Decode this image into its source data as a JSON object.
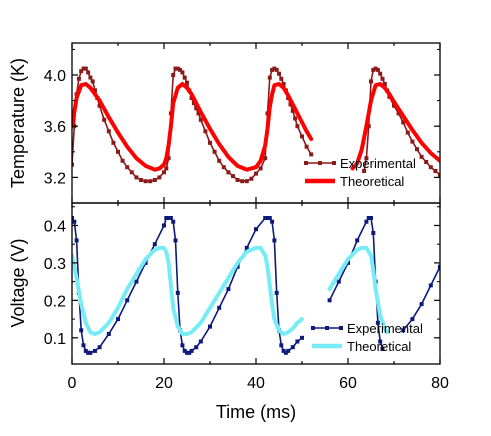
{
  "chart_data": [
    {
      "type": "line",
      "panel": "top",
      "ylabel": "Temperature (K)",
      "ylim": [
        3.0,
        4.25
      ],
      "yticks": [
        3.2,
        3.6,
        4.0
      ],
      "ytick_labels": [
        "3.2",
        "3.6",
        "4.0"
      ],
      "xlim": [
        0,
        80
      ],
      "legend_position": "bottom-right",
      "series": [
        {
          "name": "Experimental",
          "color": "#8b1a1a",
          "marker": "square",
          "x": [
            0,
            0.5,
            1,
            1.5,
            2,
            2.5,
            3,
            3.5,
            4,
            4.5,
            5,
            5.5,
            6,
            7,
            8,
            9,
            10,
            11,
            12,
            13,
            14,
            15,
            16,
            17,
            18,
            19,
            20,
            20.5,
            21,
            21.5,
            22,
            22.5,
            23,
            23.5,
            24,
            24.5,
            25,
            25.5,
            26,
            26.5,
            27,
            27.5,
            28,
            29,
            30,
            31,
            32,
            33,
            34,
            35,
            36,
            37,
            38,
            39,
            40,
            41,
            42,
            42.5,
            43,
            43.5,
            44,
            44.5,
            45,
            45.5,
            46,
            46.5,
            47,
            47.5,
            48,
            48.5,
            49,
            50,
            51,
            52
          ],
          "y": [
            3.3,
            3.6,
            3.85,
            3.97,
            4.03,
            4.05,
            4.05,
            4.02,
            3.98,
            3.95,
            3.88,
            3.82,
            3.76,
            3.65,
            3.56,
            3.47,
            3.4,
            3.33,
            3.28,
            3.24,
            3.2,
            3.18,
            3.17,
            3.17,
            3.18,
            3.2,
            3.24,
            3.27,
            3.35,
            3.7,
            4.0,
            4.05,
            4.05,
            4.04,
            4.02,
            3.98,
            3.94,
            3.88,
            3.82,
            3.78,
            3.74,
            3.7,
            3.65,
            3.56,
            3.47,
            3.4,
            3.33,
            3.28,
            3.24,
            3.21,
            3.18,
            3.17,
            3.17,
            3.19,
            3.23,
            3.27,
            3.35,
            3.7,
            3.98,
            4.04,
            4.05,
            4.04,
            4.01,
            3.97,
            3.93,
            3.88,
            3.82,
            3.77,
            3.72,
            3.66,
            3.6,
            3.52,
            3.44,
            3.38
          ]
        },
        {
          "name": "Experimental",
          "color": "#8b1a1a",
          "marker": "square",
          "x": [
            63.5,
            64,
            64.5,
            65,
            65.5,
            66,
            66.5,
            67,
            67.5,
            68,
            68.5,
            69,
            70,
            71,
            72,
            73,
            74,
            75,
            76,
            77,
            78,
            79,
            80
          ],
          "y": [
            3.25,
            3.35,
            3.6,
            3.95,
            4.04,
            4.05,
            4.04,
            4.01,
            3.97,
            3.93,
            3.88,
            3.83,
            3.76,
            3.7,
            3.63,
            3.55,
            3.48,
            3.42,
            3.36,
            3.32,
            3.28,
            3.25,
            3.22
          ]
        },
        {
          "name": "Theoretical",
          "color": "#ff0000",
          "x": [
            0,
            1,
            2,
            3,
            4,
            5,
            6,
            8,
            10,
            12,
            14,
            16,
            18,
            19,
            20,
            20.5,
            21,
            21.5,
            22,
            23,
            24,
            25,
            26,
            27,
            28,
            30,
            32,
            34,
            36,
            38,
            40,
            41,
            42,
            42.5,
            43,
            43.5,
            44,
            45,
            46,
            47,
            48,
            49,
            50,
            51,
            52
          ],
          "y": [
            3.6,
            3.82,
            3.92,
            3.93,
            3.9,
            3.85,
            3.8,
            3.67,
            3.55,
            3.44,
            3.35,
            3.29,
            3.26,
            3.27,
            3.3,
            3.35,
            3.45,
            3.6,
            3.78,
            3.9,
            3.93,
            3.9,
            3.85,
            3.78,
            3.71,
            3.58,
            3.46,
            3.36,
            3.29,
            3.26,
            3.28,
            3.33,
            3.45,
            3.58,
            3.75,
            3.85,
            3.92,
            3.93,
            3.9,
            3.84,
            3.77,
            3.7,
            3.63,
            3.56,
            3.5
          ]
        },
        {
          "name": "Theoretical",
          "color": "#ff0000",
          "x": [
            61,
            62,
            63,
            64,
            65,
            66,
            67,
            68,
            69,
            70,
            72,
            74,
            76,
            78,
            80
          ],
          "y": [
            3.27,
            3.31,
            3.42,
            3.6,
            3.8,
            3.92,
            3.93,
            3.9,
            3.85,
            3.79,
            3.68,
            3.57,
            3.47,
            3.39,
            3.33
          ]
        }
      ],
      "legend": [
        {
          "label": "Experimental",
          "color": "#8b1a1a",
          "marker": "square"
        },
        {
          "label": "Theoretical",
          "color": "#ff0000",
          "marker": "none"
        }
      ]
    },
    {
      "type": "line",
      "panel": "bottom",
      "xlabel": "Time (ms)",
      "ylabel": "Voltage (V)",
      "ylim": [
        0.03,
        0.46
      ],
      "yticks": [
        0.1,
        0.2,
        0.3,
        0.4
      ],
      "ytick_labels": [
        "0.1",
        "0.2",
        "0.3",
        "0.4"
      ],
      "xlim": [
        0,
        80
      ],
      "xticks": [
        0,
        20,
        40,
        60,
        80
      ],
      "xtick_labels": [
        "0",
        "20",
        "40",
        "60",
        "80"
      ],
      "legend_position": "bottom-right",
      "series": [
        {
          "name": "Experimental",
          "color": "#0d1a7a",
          "marker": "square",
          "x": [
            0,
            0.5,
            1,
            1.5,
            2,
            2.5,
            3,
            3.5,
            4,
            5,
            6,
            8,
            10,
            12,
            14,
            16,
            18,
            20,
            20.5,
            21,
            21.5,
            22,
            22.5,
            23,
            23.5,
            24,
            24.5,
            25,
            25.5,
            26,
            27,
            28,
            30,
            32,
            34,
            36,
            38,
            40,
            42,
            42.5,
            43,
            43.5,
            44,
            44.5,
            45,
            45.5,
            46,
            46.5,
            47,
            48,
            49,
            50
          ],
          "y": [
            0.42,
            0.41,
            0.36,
            0.22,
            0.12,
            0.08,
            0.065,
            0.06,
            0.06,
            0.065,
            0.075,
            0.11,
            0.15,
            0.2,
            0.25,
            0.3,
            0.35,
            0.4,
            0.42,
            0.42,
            0.42,
            0.41,
            0.36,
            0.22,
            0.12,
            0.08,
            0.065,
            0.06,
            0.06,
            0.065,
            0.075,
            0.09,
            0.13,
            0.18,
            0.23,
            0.29,
            0.34,
            0.39,
            0.42,
            0.42,
            0.42,
            0.41,
            0.36,
            0.22,
            0.12,
            0.08,
            0.065,
            0.06,
            0.065,
            0.075,
            0.09,
            0.1
          ]
        },
        {
          "name": "Experimental",
          "color": "#0d1a7a",
          "marker": "square",
          "x": [
            56,
            58,
            60,
            62,
            64,
            64.5,
            65,
            65.5,
            66,
            66.5,
            67,
            67.5
          ],
          "y": [
            0.2,
            0.25,
            0.3,
            0.36,
            0.41,
            0.42,
            0.42,
            0.38,
            0.25,
            0.14,
            0.09,
            0.07
          ]
        },
        {
          "name": "Experimental",
          "color": "#0d1a7a",
          "marker": "square",
          "x": [
            72,
            74,
            76,
            78,
            80
          ],
          "y": [
            0.12,
            0.15,
            0.19,
            0.24,
            0.29
          ]
        },
        {
          "name": "Theoretical",
          "color": "#77ecf7",
          "x": [
            0,
            1,
            2,
            3,
            4,
            5,
            6,
            8,
            10,
            12,
            14,
            16,
            18,
            19,
            20,
            20.5,
            21,
            21.5,
            22,
            23,
            24,
            25,
            26,
            28,
            30,
            32,
            34,
            36,
            38,
            40,
            41,
            42,
            42.5,
            43,
            43.5,
            44,
            45,
            46,
            47,
            48,
            49,
            50
          ],
          "y": [
            0.32,
            0.26,
            0.19,
            0.14,
            0.115,
            0.11,
            0.115,
            0.14,
            0.18,
            0.23,
            0.27,
            0.31,
            0.335,
            0.34,
            0.34,
            0.33,
            0.3,
            0.24,
            0.18,
            0.13,
            0.11,
            0.11,
            0.115,
            0.14,
            0.18,
            0.22,
            0.26,
            0.3,
            0.33,
            0.34,
            0.34,
            0.32,
            0.29,
            0.24,
            0.19,
            0.15,
            0.12,
            0.11,
            0.115,
            0.125,
            0.14,
            0.15
          ]
        },
        {
          "name": "Theoretical",
          "color": "#77ecf7",
          "x": [
            56,
            58,
            60,
            62,
            63,
            64,
            65,
            65.5,
            66,
            67,
            68,
            68.5
          ],
          "y": [
            0.23,
            0.27,
            0.31,
            0.335,
            0.34,
            0.34,
            0.32,
            0.28,
            0.23,
            0.16,
            0.125,
            0.115
          ]
        }
      ],
      "legend": [
        {
          "label": "Experimental",
          "color": "#0d1a7a",
          "marker": "square"
        },
        {
          "label": "Theoretical",
          "color": "#77ecf7",
          "marker": "none"
        }
      ]
    }
  ]
}
